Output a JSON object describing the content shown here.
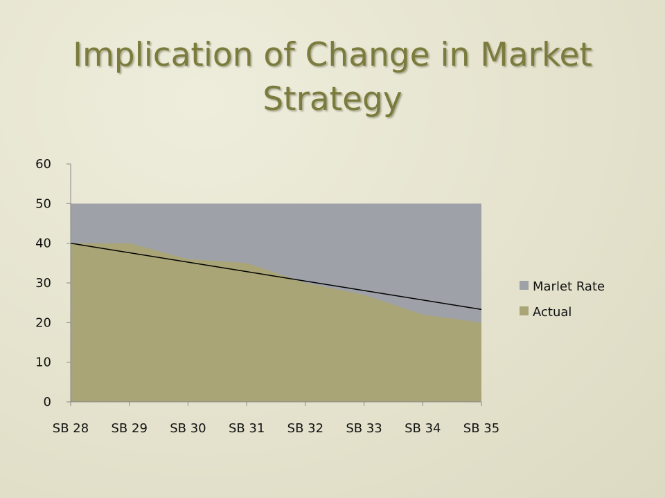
{
  "title_line1": "Implication of Change in Market",
  "title_line2": "Strategy",
  "chart_data": {
    "type": "area",
    "categories": [
      "SB 28",
      "SB 29",
      "SB 30",
      "SB 31",
      "SB 32",
      "SB 33",
      "SB 34",
      "SB 35"
    ],
    "series": [
      {
        "name": "Marlet Rate",
        "values": [
          50,
          50,
          50,
          50,
          50,
          50,
          50,
          50
        ],
        "color": "#9ea1a8"
      },
      {
        "name": "Actual",
        "values": [
          40,
          40,
          36,
          35,
          30,
          27,
          22,
          20
        ],
        "color": "#a9a577"
      }
    ],
    "trendline": {
      "start": 40,
      "end": 23.3,
      "color": "#000000"
    },
    "ylim": [
      0,
      60
    ],
    "yticks": [
      0,
      10,
      20,
      30,
      40,
      50,
      60
    ],
    "grid": false,
    "legend": "right"
  }
}
